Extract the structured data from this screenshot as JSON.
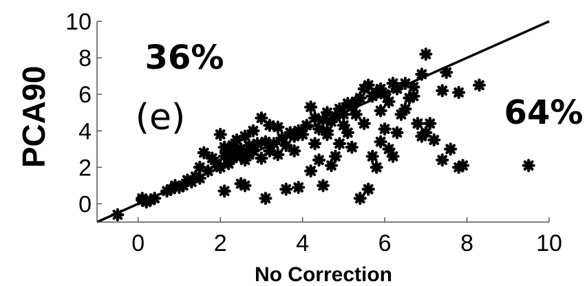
{
  "chart_data": {
    "type": "scatter",
    "xlabel": "No Correction",
    "ylabel": "PCA90",
    "xlim": [
      -1,
      10
    ],
    "ylim": [
      -1,
      10
    ],
    "xticks": [
      "0",
      "2",
      "4",
      "6",
      "8",
      "10"
    ],
    "yticks": [
      "0",
      "2",
      "4",
      "6",
      "8",
      "10"
    ],
    "grid": false,
    "reference_line": {
      "from": [
        -1,
        -1
      ],
      "to": [
        10,
        10
      ]
    },
    "annotations": {
      "above_pct": "36%",
      "below_pct": "64%",
      "panel_tag": "(e)"
    },
    "points": [
      [
        -0.5,
        -0.6
      ],
      [
        0.1,
        0.2
      ],
      [
        0.2,
        0.1
      ],
      [
        0.3,
        0.2
      ],
      [
        0.1,
        0.3
      ],
      [
        0.4,
        0.3
      ],
      [
        0.7,
        0.7
      ],
      [
        0.8,
        0.8
      ],
      [
        0.9,
        1.0
      ],
      [
        1.0,
        0.9
      ],
      [
        1.1,
        1.0
      ],
      [
        1.2,
        1.3
      ],
      [
        1.3,
        1.2
      ],
      [
        1.4,
        1.5
      ],
      [
        1.5,
        1.4
      ],
      [
        1.5,
        2.0
      ],
      [
        1.6,
        2.8
      ],
      [
        1.7,
        1.8
      ],
      [
        1.8,
        2.5
      ],
      [
        1.9,
        2.2
      ],
      [
        2.0,
        3.8
      ],
      [
        2.0,
        2.0
      ],
      [
        2.1,
        2.6
      ],
      [
        2.1,
        3.1
      ],
      [
        2.2,
        2.2
      ],
      [
        2.2,
        2.8
      ],
      [
        2.3,
        3.2
      ],
      [
        2.3,
        2.5
      ],
      [
        2.4,
        3.5
      ],
      [
        2.4,
        2.9
      ],
      [
        2.5,
        2.6
      ],
      [
        2.5,
        3.0
      ],
      [
        2.6,
        3.7
      ],
      [
        2.6,
        2.4
      ],
      [
        2.7,
        2.7
      ],
      [
        2.7,
        3.2
      ],
      [
        2.8,
        2.9
      ],
      [
        2.8,
        4.0
      ],
      [
        2.9,
        3.3
      ],
      [
        3.0,
        4.7
      ],
      [
        3.0,
        2.5
      ],
      [
        3.1,
        3.4
      ],
      [
        3.2,
        2.9
      ],
      [
        3.3,
        3.3
      ],
      [
        3.4,
        4.2
      ],
      [
        3.5,
        3.6
      ],
      [
        3.6,
        3.2
      ],
      [
        3.7,
        3.9
      ],
      [
        3.8,
        3.7
      ],
      [
        3.9,
        4.0
      ],
      [
        4.0,
        3.8
      ],
      [
        4.1,
        4.3
      ],
      [
        4.2,
        5.3
      ],
      [
        4.3,
        4.7
      ],
      [
        4.4,
        4.1
      ],
      [
        4.5,
        4.6
      ],
      [
        4.6,
        5.0
      ],
      [
        4.7,
        4.5
      ],
      [
        4.8,
        4.8
      ],
      [
        4.9,
        5.2
      ],
      [
        5.0,
        4.9
      ],
      [
        5.1,
        5.5
      ],
      [
        5.2,
        5.3
      ],
      [
        5.3,
        5.6
      ],
      [
        5.4,
        5.8
      ],
      [
        5.5,
        6.3
      ],
      [
        5.6,
        6.5
      ],
      [
        5.7,
        5.9
      ],
      [
        5.8,
        6.1
      ],
      [
        5.9,
        6.3
      ],
      [
        6.0,
        6.0
      ],
      [
        6.2,
        6.6
      ],
      [
        6.3,
        6.3
      ],
      [
        6.5,
        6.6
      ],
      [
        6.7,
        6.4
      ],
      [
        6.9,
        7.1
      ],
      [
        7.0,
        8.2
      ],
      [
        7.4,
        6.2
      ],
      [
        7.5,
        7.2
      ],
      [
        7.8,
        6.1
      ],
      [
        8.3,
        6.5
      ],
      [
        2.1,
        0.7
      ],
      [
        2.5,
        1.1
      ],
      [
        2.6,
        1.0
      ],
      [
        3.1,
        0.3
      ],
      [
        3.6,
        0.8
      ],
      [
        3.9,
        0.9
      ],
      [
        4.2,
        1.8
      ],
      [
        4.4,
        2.4
      ],
      [
        4.5,
        1.0
      ],
      [
        4.6,
        3.8
      ],
      [
        4.7,
        2.1
      ],
      [
        4.8,
        2.6
      ],
      [
        4.9,
        3.3
      ],
      [
        5.1,
        3.9
      ],
      [
        5.2,
        3.1
      ],
      [
        5.4,
        0.3
      ],
      [
        5.6,
        0.8
      ],
      [
        5.7,
        2.6
      ],
      [
        5.8,
        2.0
      ],
      [
        5.9,
        3.4
      ],
      [
        6.0,
        4.1
      ],
      [
        6.1,
        3.0
      ],
      [
        6.2,
        2.6
      ],
      [
        6.3,
        3.9
      ],
      [
        6.4,
        4.9
      ],
      [
        6.5,
        5.2
      ],
      [
        6.6,
        5.8
      ],
      [
        6.7,
        5.9
      ],
      [
        6.8,
        4.4
      ],
      [
        6.9,
        3.7
      ],
      [
        7.0,
        3.9
      ],
      [
        7.1,
        4.4
      ],
      [
        7.2,
        3.5
      ],
      [
        7.4,
        2.4
      ],
      [
        7.6,
        3.0
      ],
      [
        7.8,
        2.0
      ],
      [
        7.9,
        2.1
      ],
      [
        9.5,
        2.1
      ],
      [
        3.2,
        4.3
      ],
      [
        3.4,
        2.7
      ],
      [
        3.8,
        2.9
      ],
      [
        4.3,
        3.3
      ],
      [
        4.6,
        4.0
      ],
      [
        5.0,
        4.3
      ],
      [
        5.3,
        4.9
      ],
      [
        5.5,
        4.4
      ],
      [
        5.9,
        5.1
      ],
      [
        6.1,
        5.6
      ]
    ]
  }
}
